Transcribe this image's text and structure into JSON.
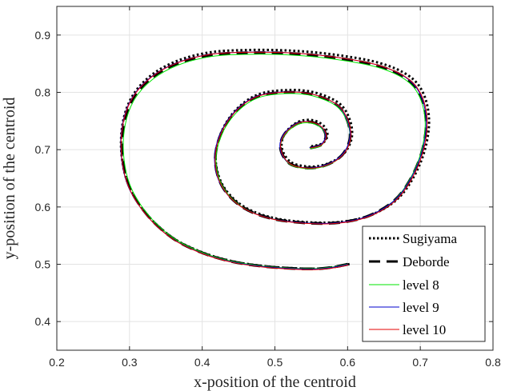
{
  "chart_data": {
    "type": "line",
    "title": "",
    "xlabel": "x-position of the centroid",
    "ylabel": "y-position of the centroid",
    "xlim": [
      0.2,
      0.8
    ],
    "ylim": [
      0.35,
      0.95
    ],
    "xticks": [
      "0.2",
      "0.3",
      "0.4",
      "0.5",
      "0.6",
      "0.7",
      "0.8"
    ],
    "yticks": [
      "0.4",
      "0.5",
      "0.6",
      "0.7",
      "0.8",
      "0.9"
    ],
    "grid": true,
    "legend_position": "bottom-right",
    "spiral_points": [
      [
        0.6,
        0.5
      ],
      [
        0.58,
        0.495
      ],
      [
        0.555,
        0.492
      ],
      [
        0.52,
        0.493
      ],
      [
        0.48,
        0.497
      ],
      [
        0.44,
        0.505
      ],
      [
        0.4,
        0.52
      ],
      [
        0.36,
        0.545
      ],
      [
        0.325,
        0.585
      ],
      [
        0.3,
        0.635
      ],
      [
        0.29,
        0.69
      ],
      [
        0.292,
        0.745
      ],
      [
        0.305,
        0.79
      ],
      [
        0.33,
        0.825
      ],
      [
        0.365,
        0.85
      ],
      [
        0.41,
        0.865
      ],
      [
        0.46,
        0.869
      ],
      [
        0.52,
        0.868
      ],
      [
        0.58,
        0.861
      ],
      [
        0.64,
        0.847
      ],
      [
        0.68,
        0.825
      ],
      [
        0.7,
        0.795
      ],
      [
        0.708,
        0.75
      ],
      [
        0.703,
        0.7
      ],
      [
        0.688,
        0.652
      ],
      [
        0.665,
        0.612
      ],
      [
        0.63,
        0.585
      ],
      [
        0.59,
        0.573
      ],
      [
        0.545,
        0.572
      ],
      [
        0.495,
        0.58
      ],
      [
        0.455,
        0.6
      ],
      [
        0.428,
        0.635
      ],
      [
        0.418,
        0.68
      ],
      [
        0.425,
        0.725
      ],
      [
        0.445,
        0.765
      ],
      [
        0.475,
        0.792
      ],
      [
        0.515,
        0.8
      ],
      [
        0.552,
        0.796
      ],
      [
        0.585,
        0.778
      ],
      [
        0.6,
        0.75
      ],
      [
        0.603,
        0.718
      ],
      [
        0.592,
        0.69
      ],
      [
        0.57,
        0.673
      ],
      [
        0.545,
        0.668
      ],
      [
        0.52,
        0.676
      ],
      [
        0.508,
        0.7
      ],
      [
        0.512,
        0.725
      ],
      [
        0.53,
        0.745
      ],
      [
        0.55,
        0.748
      ],
      [
        0.565,
        0.738
      ],
      [
        0.57,
        0.722
      ],
      [
        0.563,
        0.708
      ],
      [
        0.548,
        0.703
      ]
    ],
    "series": [
      {
        "name": "Sugiyama",
        "color": "#000000",
        "style": "dotted"
      },
      {
        "name": "Deborde",
        "color": "#000000",
        "style": "dashed"
      },
      {
        "name": "level 8",
        "color": "#00e600",
        "style": "solid"
      },
      {
        "name": "level 9",
        "color": "#0000cc",
        "style": "solid"
      },
      {
        "name": "level 10",
        "color": "#e60000",
        "style": "solid"
      }
    ]
  }
}
